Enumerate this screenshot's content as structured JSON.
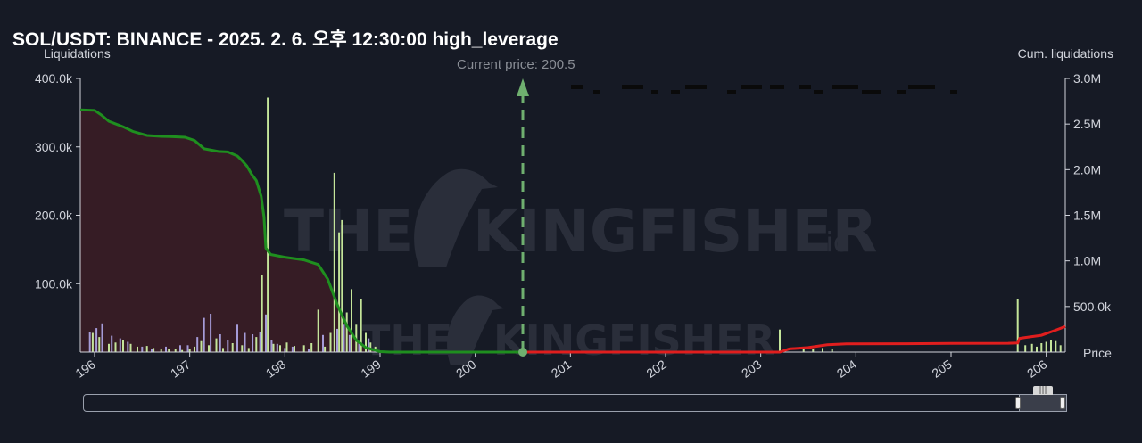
{
  "header": {
    "title": "SOL/USDT: BINANCE - 2025. 2. 6. 오후 12:30:00 high_leverage",
    "left_axis_title": "Liquidations",
    "right_axis_title": "Cum. liquidations",
    "x_axis_title": "Price",
    "current_price_label": "Current price: 200.5"
  },
  "colors": {
    "background": "#161a25",
    "long_cum_line": "#1f8f1f",
    "short_cum_line": "#e01e1e",
    "long_fill": "#3a1d26",
    "bar_green": "#c4e59a",
    "bar_purple": "#a59bd8",
    "current_price": "#6faf6f"
  },
  "chart_data": {
    "type": "bar",
    "xlim": [
      195.85,
      206.2
    ],
    "x_ticks": [
      196,
      197,
      198,
      199,
      200,
      201,
      202,
      203,
      204,
      205,
      206
    ],
    "y_left": {
      "range": [
        0,
        400000
      ],
      "ticks": [
        100000,
        200000,
        300000,
        400000
      ],
      "tick_labels": [
        "100.0k",
        "200.0k",
        "300.0k",
        "400.0k"
      ]
    },
    "y_right": {
      "range": [
        0,
        3000000
      ],
      "ticks": [
        500000,
        1000000,
        1500000,
        2000000,
        2500000,
        3000000
      ],
      "tick_labels": [
        "500.0k",
        "1.0M",
        "1.5M",
        "2.0M",
        "2.5M",
        "3.0M"
      ]
    },
    "current_price": 200.5,
    "series": [
      {
        "kind": "bar",
        "color": "green",
        "points": [
          [
            195.98,
            28000
          ],
          [
            196.05,
            22000
          ],
          [
            196.15,
            12000
          ],
          [
            196.22,
            14000
          ],
          [
            196.3,
            17000
          ],
          [
            196.38,
            12000
          ],
          [
            196.45,
            8000
          ],
          [
            196.55,
            9000
          ],
          [
            196.62,
            6000
          ],
          [
            196.7,
            5000
          ],
          [
            196.78,
            4000
          ],
          [
            196.85,
            4000
          ],
          [
            196.92,
            3000
          ],
          [
            197.0,
            4000
          ],
          [
            197.05,
            8000
          ],
          [
            197.12,
            16000
          ],
          [
            197.2,
            10000
          ],
          [
            197.28,
            20000
          ],
          [
            197.35,
            6000
          ],
          [
            197.45,
            13000
          ],
          [
            197.55,
            10000
          ],
          [
            197.62,
            6000
          ],
          [
            197.7,
            22000
          ],
          [
            197.76,
            112000
          ],
          [
            197.82,
            372000
          ],
          [
            197.88,
            12000
          ],
          [
            197.95,
            10000
          ],
          [
            198.02,
            14000
          ],
          [
            198.1,
            9000
          ],
          [
            198.2,
            10000
          ],
          [
            198.28,
            13000
          ],
          [
            198.35,
            62000
          ],
          [
            198.42,
            8000
          ],
          [
            198.48,
            28000
          ],
          [
            198.52,
            262000
          ],
          [
            198.57,
            175000
          ],
          [
            198.6,
            193000
          ],
          [
            198.65,
            58000
          ],
          [
            198.7,
            92000
          ],
          [
            198.75,
            40000
          ],
          [
            198.8,
            78000
          ],
          [
            198.85,
            28000
          ],
          [
            198.9,
            14000
          ],
          [
            198.95,
            8000
          ],
          [
            203.2,
            33000
          ],
          [
            203.45,
            6000
          ],
          [
            203.55,
            5000
          ],
          [
            203.65,
            6000
          ],
          [
            203.75,
            5000
          ],
          [
            205.7,
            78000
          ],
          [
            205.78,
            10000
          ],
          [
            205.85,
            12000
          ],
          [
            205.9,
            8000
          ],
          [
            205.95,
            13000
          ],
          [
            206.0,
            15000
          ],
          [
            206.05,
            18000
          ],
          [
            206.1,
            16000
          ],
          [
            206.15,
            10000
          ]
        ]
      },
      {
        "kind": "bar",
        "color": "purple",
        "points": [
          [
            195.95,
            30000
          ],
          [
            196.02,
            35000
          ],
          [
            196.08,
            42000
          ],
          [
            196.18,
            24000
          ],
          [
            196.27,
            20000
          ],
          [
            196.35,
            15000
          ],
          [
            196.5,
            8000
          ],
          [
            196.6,
            5000
          ],
          [
            196.75,
            8000
          ],
          [
            196.9,
            10000
          ],
          [
            196.98,
            10000
          ],
          [
            197.08,
            22000
          ],
          [
            197.15,
            50000
          ],
          [
            197.22,
            56000
          ],
          [
            197.32,
            26000
          ],
          [
            197.4,
            18000
          ],
          [
            197.5,
            40000
          ],
          [
            197.58,
            28000
          ],
          [
            197.66,
            26000
          ],
          [
            197.74,
            30000
          ],
          [
            197.8,
            55000
          ],
          [
            197.86,
            18000
          ],
          [
            197.92,
            12000
          ],
          [
            198.0,
            6000
          ],
          [
            198.08,
            8000
          ],
          [
            198.25,
            4000
          ],
          [
            198.4,
            25000
          ],
          [
            198.55,
            34000
          ],
          [
            198.62,
            40000
          ],
          [
            198.68,
            25000
          ],
          [
            198.78,
            15000
          ],
          [
            198.88,
            20000
          ]
        ]
      },
      {
        "kind": "line",
        "side": "long",
        "color": "green",
        "points": [
          [
            195.85,
            2655000
          ],
          [
            196.0,
            2650000
          ],
          [
            196.07,
            2600000
          ],
          [
            196.15,
            2530000
          ],
          [
            196.3,
            2470000
          ],
          [
            196.4,
            2420000
          ],
          [
            196.55,
            2375000
          ],
          [
            196.7,
            2365000
          ],
          [
            196.8,
            2362000
          ],
          [
            196.95,
            2355000
          ],
          [
            197.05,
            2320000
          ],
          [
            197.15,
            2230000
          ],
          [
            197.3,
            2200000
          ],
          [
            197.4,
            2195000
          ],
          [
            197.5,
            2150000
          ],
          [
            197.55,
            2100000
          ],
          [
            197.6,
            2040000
          ],
          [
            197.65,
            1950000
          ],
          [
            197.7,
            1880000
          ],
          [
            197.75,
            1710000
          ],
          [
            197.78,
            1480000
          ],
          [
            197.8,
            1140000
          ],
          [
            197.85,
            1070000
          ],
          [
            198.0,
            1040000
          ],
          [
            198.2,
            1010000
          ],
          [
            198.35,
            960000
          ],
          [
            198.45,
            800000
          ],
          [
            198.55,
            520000
          ],
          [
            198.65,
            290000
          ],
          [
            198.75,
            130000
          ],
          [
            198.85,
            50000
          ],
          [
            198.95,
            20000
          ],
          [
            199.0,
            5000
          ],
          [
            199.1,
            0
          ],
          [
            200.5,
            0
          ]
        ]
      },
      {
        "kind": "line",
        "side": "short",
        "color": "red",
        "points": [
          [
            200.5,
            0
          ],
          [
            203.2,
            0
          ],
          [
            203.3,
            35000
          ],
          [
            203.5,
            50000
          ],
          [
            203.7,
            80000
          ],
          [
            203.9,
            90000
          ],
          [
            204.5,
            92000
          ],
          [
            205.0,
            95000
          ],
          [
            205.6,
            97000
          ],
          [
            205.7,
            100000
          ],
          [
            205.72,
            150000
          ],
          [
            205.78,
            160000
          ],
          [
            205.95,
            185000
          ],
          [
            206.1,
            240000
          ],
          [
            206.2,
            280000
          ]
        ]
      }
    ]
  }
}
